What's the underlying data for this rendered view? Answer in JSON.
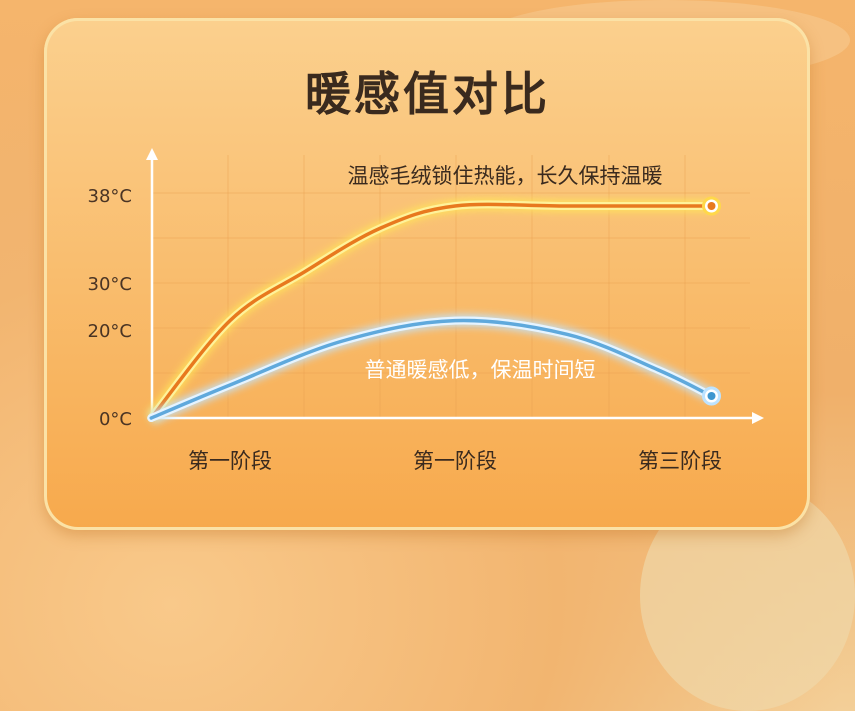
{
  "title": "暖感值对比",
  "chart_data": {
    "type": "line",
    "title": "暖感值对比",
    "categories": [
      "第一阶段",
      "第一阶段",
      "第三阶段"
    ],
    "y_ticks": [
      "0°C",
      "20°C",
      "30°C",
      "38°C"
    ],
    "grid": true,
    "series": [
      {
        "annotation": "温感毛绒锁住热能，长久保持温暖",
        "color": "#f0a020",
        "points": [
          [
            0.65,
            0
          ],
          [
            1,
            22
          ],
          [
            1.33,
            31
          ],
          [
            1.67,
            35
          ],
          [
            2,
            37
          ],
          [
            2.5,
            37
          ],
          [
            3.14,
            37
          ]
        ]
      },
      {
        "annotation": "普通暖感低，保温时间短",
        "color": "#6fb6e6",
        "points": [
          [
            0.65,
            0
          ],
          [
            1,
            7.5
          ],
          [
            1.5,
            17.5
          ],
          [
            2,
            22
          ],
          [
            2.5,
            19
          ],
          [
            2.9,
            11
          ],
          [
            3.14,
            5
          ]
        ]
      }
    ]
  }
}
